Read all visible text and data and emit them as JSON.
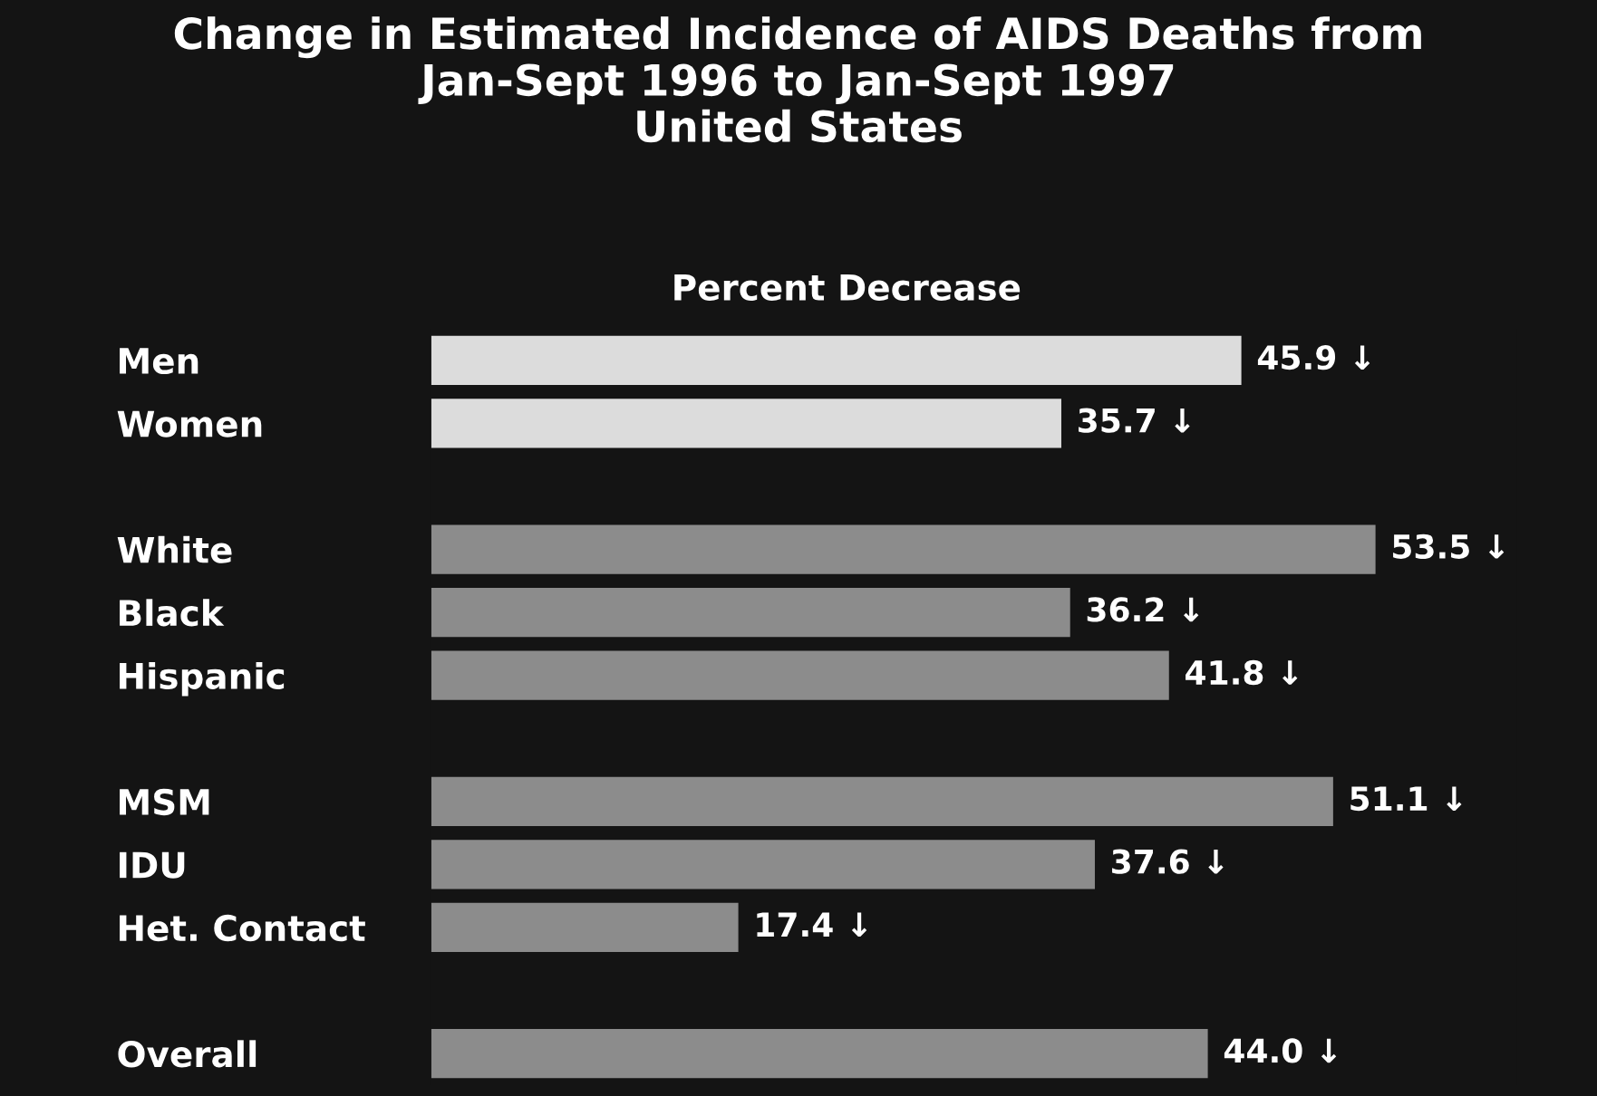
{
  "chart_data": {
    "type": "bar",
    "orientation": "horizontal",
    "title": "Change in Estimated Incidence of AIDS Deaths from\nJan-Sept 1996 to Jan-Sept 1997\nUnited States",
    "subtitle": "Percent Decrease",
    "categories": [
      "Men",
      "Women",
      null,
      "White",
      "Black",
      "Hispanic",
      null,
      "MSM",
      "IDU",
      "Het. Contact",
      null,
      "Overall"
    ],
    "values": [
      45.9,
      35.7,
      null,
      53.5,
      36.2,
      41.8,
      null,
      51.1,
      37.6,
      17.4,
      null,
      44.0
    ],
    "colors": [
      "#dcdcdc",
      "#dcdcdc",
      null,
      "#8c8c8c",
      "#8c8c8c",
      "#8c8c8c",
      null,
      "#8c8c8c",
      "#8c8c8c",
      "#8c8c8c",
      null,
      "#8c8c8c"
    ],
    "value_labels": [
      "45.9 ↓",
      "35.7 ↓",
      null,
      "53.5 ↓",
      "36.2 ↓",
      "41.8 ↓",
      null,
      "51.1 ↓",
      "37.6 ↓",
      "17.4 ↓",
      null,
      "44.0 ↓"
    ],
    "grid": false,
    "legend": false
  }
}
